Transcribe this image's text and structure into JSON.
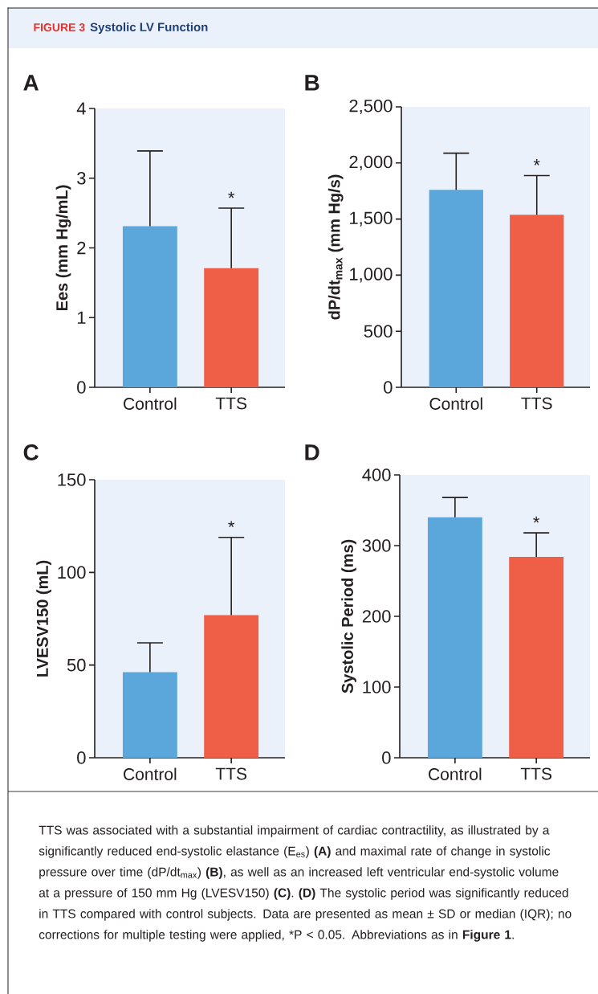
{
  "chart_data": [
    {
      "type": "bar",
      "title": "A",
      "ylabel": "Ees (mm Hg/mL)",
      "categories": [
        "Control",
        "TTS"
      ],
      "values": [
        2.31,
        1.71
      ],
      "colors": [
        "#5ba6da",
        "#ef5f48"
      ],
      "errors": [
        [
          2.31,
          3.39
        ],
        [
          1.71,
          2.57
        ]
      ],
      "ylim": [
        0,
        4
      ],
      "yticks": [
        0,
        1,
        2,
        3,
        4
      ],
      "annotations": [
        "FIGURE 3",
        "Systolic LV Function",
        {
          "text": "*",
          "x": "TTS",
          "y": 2.57
        }
      ]
    },
    {
      "type": "bar",
      "title": "B",
      "ylabel": "dP/dt$_{max}$ (mm Hg/s)",
      "categories": [
        "Control",
        "TTS"
      ],
      "values": [
        1760,
        1538
      ],
      "colors": [
        "#5ba6da",
        "#ef5f48"
      ],
      "errors": [
        [
          1760,
          2087
        ],
        [
          1538,
          1888
        ]
      ],
      "ylim": [
        0,
        2500
      ],
      "yticks": [
        0,
        500,
        {
          "value": 1000,
          "label": "1,000"
        },
        {
          "value": 1500,
          "label": "1,500"
        },
        {
          "value": 2000,
          "label": "2,000"
        },
        {
          "value": 2500,
          "label": "2,500"
        }
      ],
      "annotations": [
        {
          "text": "*",
          "x": "TTS",
          "y": 1888
        }
      ]
    },
    {
      "type": "bar",
      "title": "C",
      "ylabel": "LVESV150 (mL)",
      "categories": [
        "Control",
        "TTS"
      ],
      "values": [
        46.2,
        77.0
      ],
      "colors": [
        "#5ba6da",
        "#ef5f48"
      ],
      "errors": [
        [
          46.2,
          62.0
        ],
        [
          77.0,
          118.9
        ]
      ],
      "ylim": [
        0,
        150
      ],
      "yticks": [
        0,
        50,
        100,
        150
      ],
      "annotations": [
        {
          "text": "*",
          "x": "TTS",
          "y": 118.9
        }
      ]
    },
    {
      "type": "bar",
      "title": "D",
      "ylabel": "Systolic Period (ms)",
      "categories": [
        "Control",
        "TTS"
      ],
      "values": [
        340,
        284
      ],
      "colors": [
        "#5ba6da",
        "#ef5f48"
      ],
      "errors": [
        [
          340,
          368
        ],
        [
          284,
          318
        ]
      ],
      "ylim": [
        0,
        400
      ],
      "yticks": [
        0,
        100,
        200,
        300,
        400
      ],
      "annotations": [
        {
          "text": "*",
          "x": "TTS",
          "y": 318
        },
        "TTS was associated with a substantial impairment of cardiac contractility, as illustrated by a significantly reduced end-systolic elastance (E$_{es}$) **(A)** and maximal rate of change in systolic pressure over time (dP/dt$_{max}$) **(B)**, as well as an increased left ventricular end-systolic volume at a pressure of 150 mm Hg (LVESV150) **(C)**. **(D)** The systolic period was significantly reduced in TTS compared with control subjects. Data are presented as mean ± SD or median (IQR); no corrections for multiple testing were applied,",
        "*P < 0.05.",
        "Abbreviations as in **Figure 1**."
      ]
    }
  ]
}
